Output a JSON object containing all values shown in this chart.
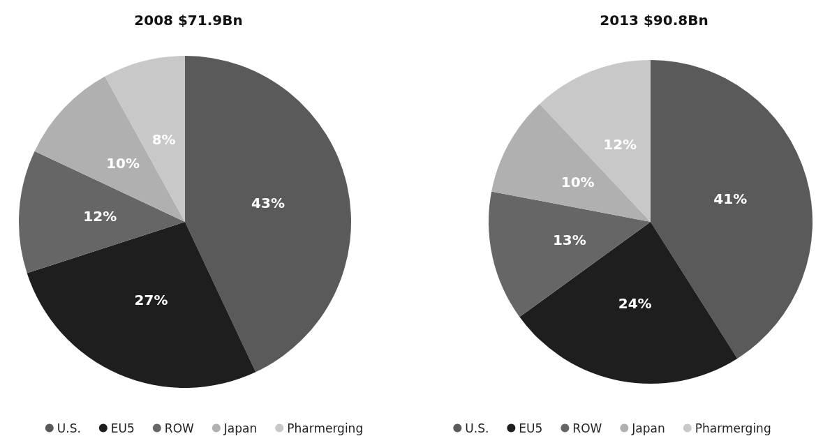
{
  "chart_data": [
    {
      "type": "pie",
      "title": "2008 $71.9Bn",
      "categories": [
        "U.S.",
        "EU5",
        "ROW",
        "Japan",
        "Pharmerging"
      ],
      "values": [
        43,
        27,
        12,
        10,
        8
      ],
      "value_labels": [
        "43%",
        "27%",
        "12%",
        "10%",
        "8%"
      ],
      "colors": [
        "#5a5a5a",
        "#1e1e1e",
        "#666666",
        "#b0b0b0",
        "#c8c8c8"
      ],
      "legend": "bottom"
    },
    {
      "type": "pie",
      "title": "2013 $90.8Bn",
      "categories": [
        "U.S.",
        "EU5",
        "ROW",
        "Japan",
        "Pharmerging"
      ],
      "values": [
        41,
        24,
        13,
        10,
        12
      ],
      "value_labels": [
        "41%",
        "24%",
        "13%",
        "10%",
        "12%"
      ],
      "colors": [
        "#5a5a5a",
        "#1e1e1e",
        "#666666",
        "#b0b0b0",
        "#c8c8c8"
      ],
      "legend": "bottom"
    }
  ]
}
